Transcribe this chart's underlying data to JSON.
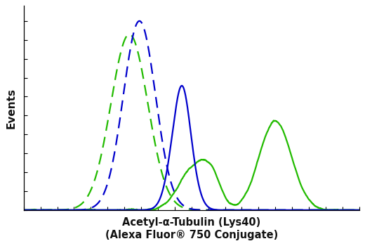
{
  "title_line1": "Acetyl-α-Tubulin (Lys40)",
  "title_line2": "(Alexa Fluor® 750 Conjugate)",
  "ylabel": "Events",
  "xlabel_fontsize": 10.5,
  "ylabel_fontsize": 11,
  "background_color": "#ffffff",
  "plot_bg_color": "#ffffff",
  "blue_dashed_color": "#0000cc",
  "green_dashed_color": "#22bb00",
  "blue_solid_color": "#0000cc",
  "green_solid_color": "#22bb00",
  "xlim": [
    0,
    1
  ],
  "ylim": [
    0,
    1.08
  ]
}
